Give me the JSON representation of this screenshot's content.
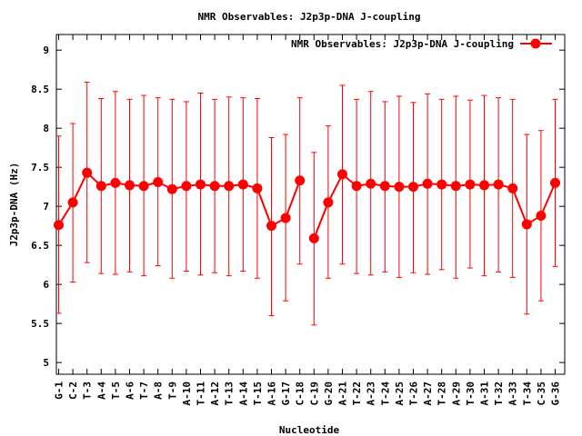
{
  "chart_data": {
    "type": "line",
    "title": "NMR Observables: J2p3p-DNA J-coupling",
    "xlabel": "Nucleotide",
    "ylabel": "J2p3p-DNA (Hz)",
    "ylim": [
      4.85,
      9.2
    ],
    "yticks": [
      "9",
      "8.5",
      "8",
      "7.5",
      "7",
      "6.5",
      "6",
      "5.5",
      "5"
    ],
    "grid": false,
    "legend": {
      "placement": "top-right",
      "label": "NMR Observables: J2p3p-DNA J-coupling"
    },
    "colors": {
      "series": "#ff0000",
      "axis": "#000000"
    },
    "categories": [
      "G-1",
      "C-2",
      "T-3",
      "A-4",
      "T-5",
      "A-6",
      "T-7",
      "A-8",
      "T-9",
      "A-10",
      "T-11",
      "A-12",
      "T-13",
      "A-14",
      "T-15",
      "A-16",
      "G-17",
      "C-18",
      "C-19",
      "G-20",
      "A-21",
      "T-22",
      "A-23",
      "T-24",
      "A-25",
      "T-26",
      "A-27",
      "T-28",
      "A-29",
      "T-30",
      "A-31",
      "T-32",
      "A-33",
      "T-34",
      "C-35",
      "G-36"
    ],
    "series": [
      {
        "name": "NMR Observables: J2p3p-DNA J-coupling",
        "segments": [
          {
            "x": [
              1,
              2,
              3,
              4,
              5,
              6,
              7,
              8,
              9,
              10,
              11,
              12,
              13,
              14,
              15,
              16,
              17,
              18
            ],
            "values": [
              6.76,
              7.05,
              7.43,
              7.26,
              7.3,
              7.27,
              7.26,
              7.31,
              7.22,
              7.26,
              7.28,
              7.26,
              7.26,
              7.28,
              7.23,
              6.75,
              6.85,
              7.33
            ],
            "err_low": [
              5.63,
              6.03,
              6.28,
              6.14,
              6.13,
              6.16,
              6.11,
              6.24,
              6.08,
              6.17,
              6.12,
              6.15,
              6.11,
              6.17,
              6.08,
              5.6,
              5.79,
              6.26
            ],
            "err_high": [
              7.9,
              8.06,
              8.59,
              8.38,
              8.47,
              8.37,
              8.42,
              8.39,
              8.37,
              8.34,
              8.45,
              8.37,
              8.4,
              8.39,
              8.38,
              7.88,
              7.92,
              8.39
            ]
          },
          {
            "x": [
              19,
              20,
              21,
              22,
              23,
              24,
              25,
              26,
              27,
              28,
              29,
              30,
              31,
              32,
              33,
              34,
              35,
              36
            ],
            "values": [
              6.59,
              7.05,
              7.41,
              7.26,
              7.29,
              7.26,
              7.25,
              7.25,
              7.29,
              7.28,
              7.26,
              7.28,
              7.27,
              7.28,
              7.23,
              6.77,
              6.88,
              7.3
            ],
            "err_low": [
              5.48,
              6.08,
              6.26,
              6.14,
              6.12,
              6.16,
              6.09,
              6.15,
              6.13,
              6.19,
              6.08,
              6.21,
              6.11,
              6.16,
              6.09,
              5.62,
              5.79,
              6.23
            ],
            "err_high": [
              7.69,
              8.03,
              8.55,
              8.37,
              8.47,
              8.34,
              8.41,
              8.33,
              8.44,
              8.37,
              8.41,
              8.36,
              8.42,
              8.39,
              8.37,
              7.92,
              7.97,
              8.37
            ]
          }
        ]
      }
    ]
  }
}
